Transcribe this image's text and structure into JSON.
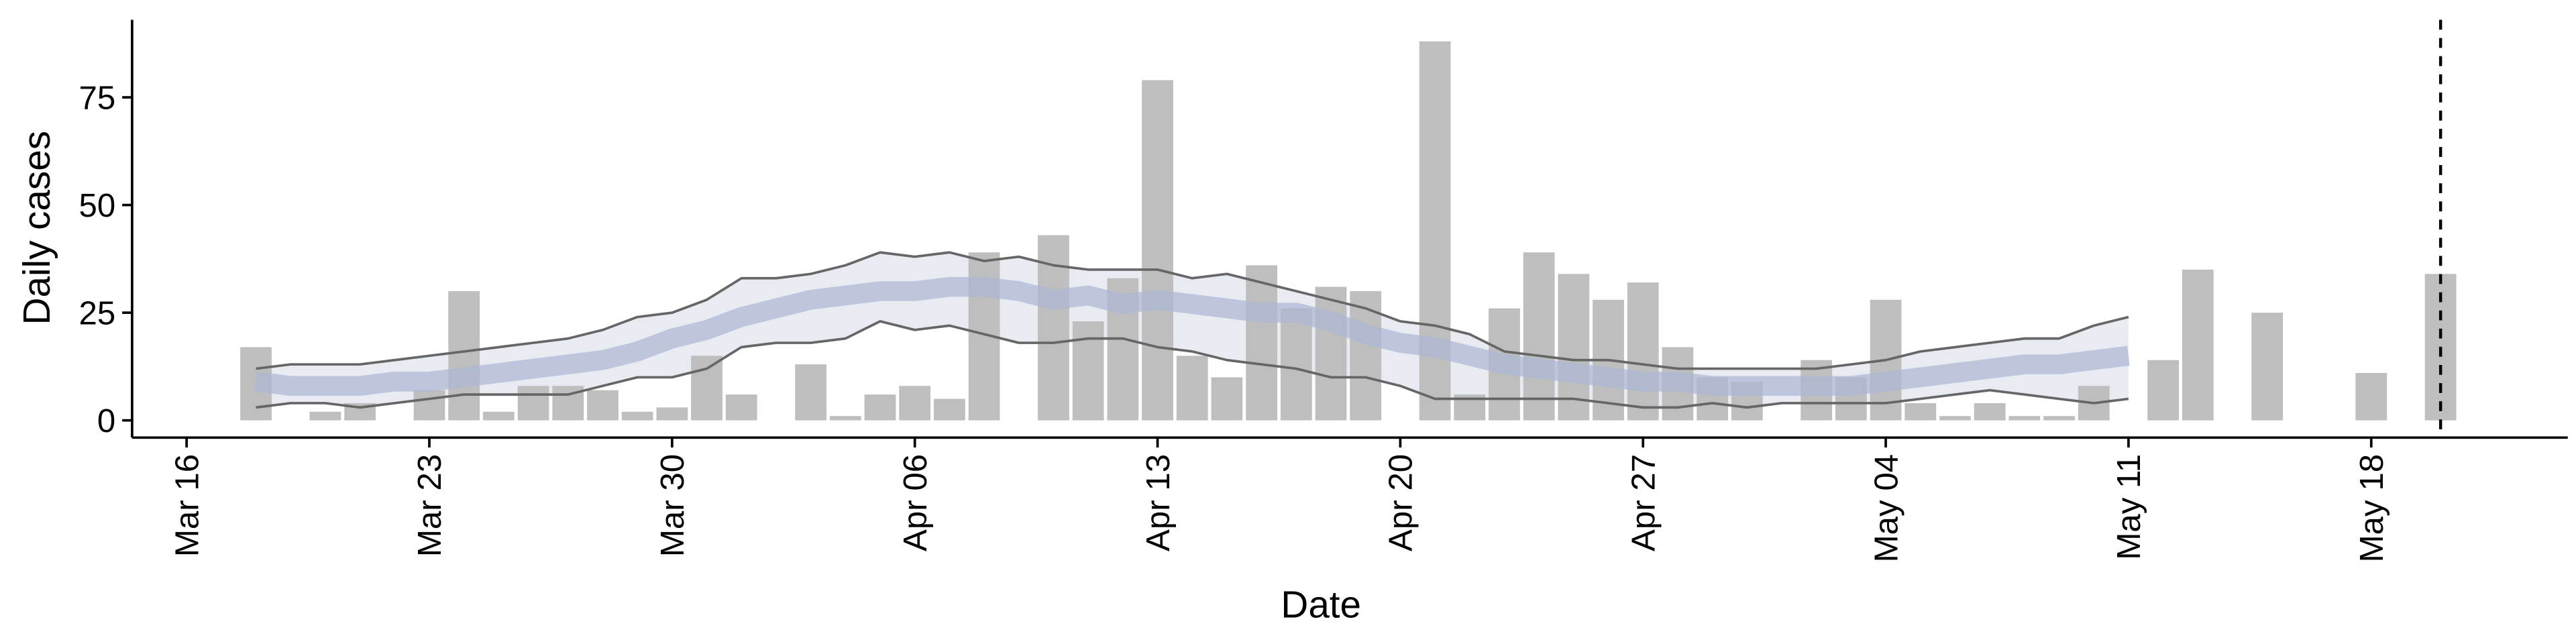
{
  "chart_data": {
    "type": "bar",
    "xlabel": "Date",
    "ylabel": "Daily cases",
    "categories": [
      "Mar 16",
      "Mar 17",
      "Mar 18",
      "Mar 19",
      "Mar 20",
      "Mar 21",
      "Mar 22",
      "Mar 23",
      "Mar 24",
      "Mar 25",
      "Mar 26",
      "Mar 27",
      "Mar 28",
      "Mar 29",
      "Mar 30",
      "Mar 31",
      "Apr 01",
      "Apr 02",
      "Apr 03",
      "Apr 04",
      "Apr 05",
      "Apr 06",
      "Apr 07",
      "Apr 08",
      "Apr 09",
      "Apr 10",
      "Apr 11",
      "Apr 12",
      "Apr 13",
      "Apr 14",
      "Apr 15",
      "Apr 16",
      "Apr 17",
      "Apr 18",
      "Apr 19",
      "Apr 20",
      "Apr 21",
      "Apr 22",
      "Apr 23",
      "Apr 24",
      "Apr 25",
      "Apr 26",
      "Apr 27",
      "Apr 28",
      "Apr 29",
      "Apr 30",
      "May 01",
      "May 02",
      "May 03",
      "May 04",
      "May 05",
      "May 06",
      "May 07",
      "May 08",
      "May 09",
      "May 10",
      "May 11",
      "May 12",
      "May 13",
      "May 14",
      "May 15",
      "May 16",
      "May 17",
      "May 18",
      "May 19",
      "May 20"
    ],
    "values": [
      null,
      null,
      17,
      0,
      2,
      4,
      0,
      7,
      30,
      2,
      8,
      8,
      7,
      2,
      3,
      15,
      6,
      0,
      13,
      1,
      6,
      8,
      5,
      39,
      0,
      43,
      23,
      33,
      79,
      15,
      10,
      36,
      26,
      31,
      30,
      0,
      88,
      6,
      26,
      39,
      34,
      28,
      32,
      17,
      10,
      9,
      0,
      14,
      10,
      28,
      4,
      1,
      4,
      1,
      1,
      8,
      0,
      14,
      35,
      0,
      25,
      0,
      0,
      11,
      0,
      34
    ],
    "color": "#bebebe",
    "median": [
      null,
      null,
      9,
      8,
      8,
      8,
      9,
      9,
      10,
      11,
      12,
      13,
      14,
      16,
      19,
      21,
      24,
      26,
      28,
      29,
      30,
      30,
      31,
      31,
      30,
      28,
      29,
      27,
      28,
      27,
      26,
      25,
      25,
      23,
      20,
      18,
      17,
      15,
      13,
      12,
      11,
      10,
      9,
      9,
      8,
      8,
      8,
      8,
      8,
      9,
      10,
      11,
      12,
      13,
      13,
      14,
      15,
      null,
      null,
      null,
      null,
      null,
      null,
      null,
      null,
      null
    ],
    "upper": [
      null,
      null,
      12,
      13,
      13,
      13,
      14,
      15,
      16,
      17,
      18,
      19,
      21,
      24,
      25,
      28,
      33,
      33,
      34,
      36,
      39,
      38,
      39,
      37,
      38,
      36,
      35,
      35,
      35,
      33,
      34,
      32,
      30,
      28,
      26,
      23,
      22,
      20,
      16,
      15,
      14,
      14,
      13,
      12,
      12,
      12,
      12,
      12,
      13,
      14,
      16,
      17,
      18,
      19,
      19,
      22,
      24,
      null,
      null,
      null,
      null,
      null,
      null,
      null,
      null,
      null
    ],
    "lower": [
      null,
      null,
      3,
      4,
      4,
      3,
      4,
      5,
      6,
      6,
      6,
      6,
      8,
      10,
      10,
      12,
      17,
      18,
      18,
      19,
      23,
      21,
      22,
      20,
      18,
      18,
      19,
      19,
      17,
      16,
      14,
      13,
      12,
      10,
      10,
      8,
      5,
      5,
      5,
      5,
      5,
      4,
      3,
      3,
      4,
      3,
      4,
      4,
      4,
      4,
      5,
      6,
      7,
      6,
      5,
      4,
      5,
      null,
      null,
      null,
      null,
      null,
      null,
      null,
      null,
      null
    ],
    "median_color": "#a9b6d3",
    "ribbon_color": "#e9ebf2",
    "line_color": "#666666",
    "vline": "May 20",
    "xticks": [
      "Mar 16",
      "Mar 23",
      "Mar 30",
      "Apr 06",
      "Apr 13",
      "Apr 20",
      "Apr 27",
      "May 04",
      "May 11",
      "May 18"
    ],
    "ylim": [
      -4,
      93
    ],
    "yticks": [
      0,
      25,
      50,
      75
    ]
  }
}
